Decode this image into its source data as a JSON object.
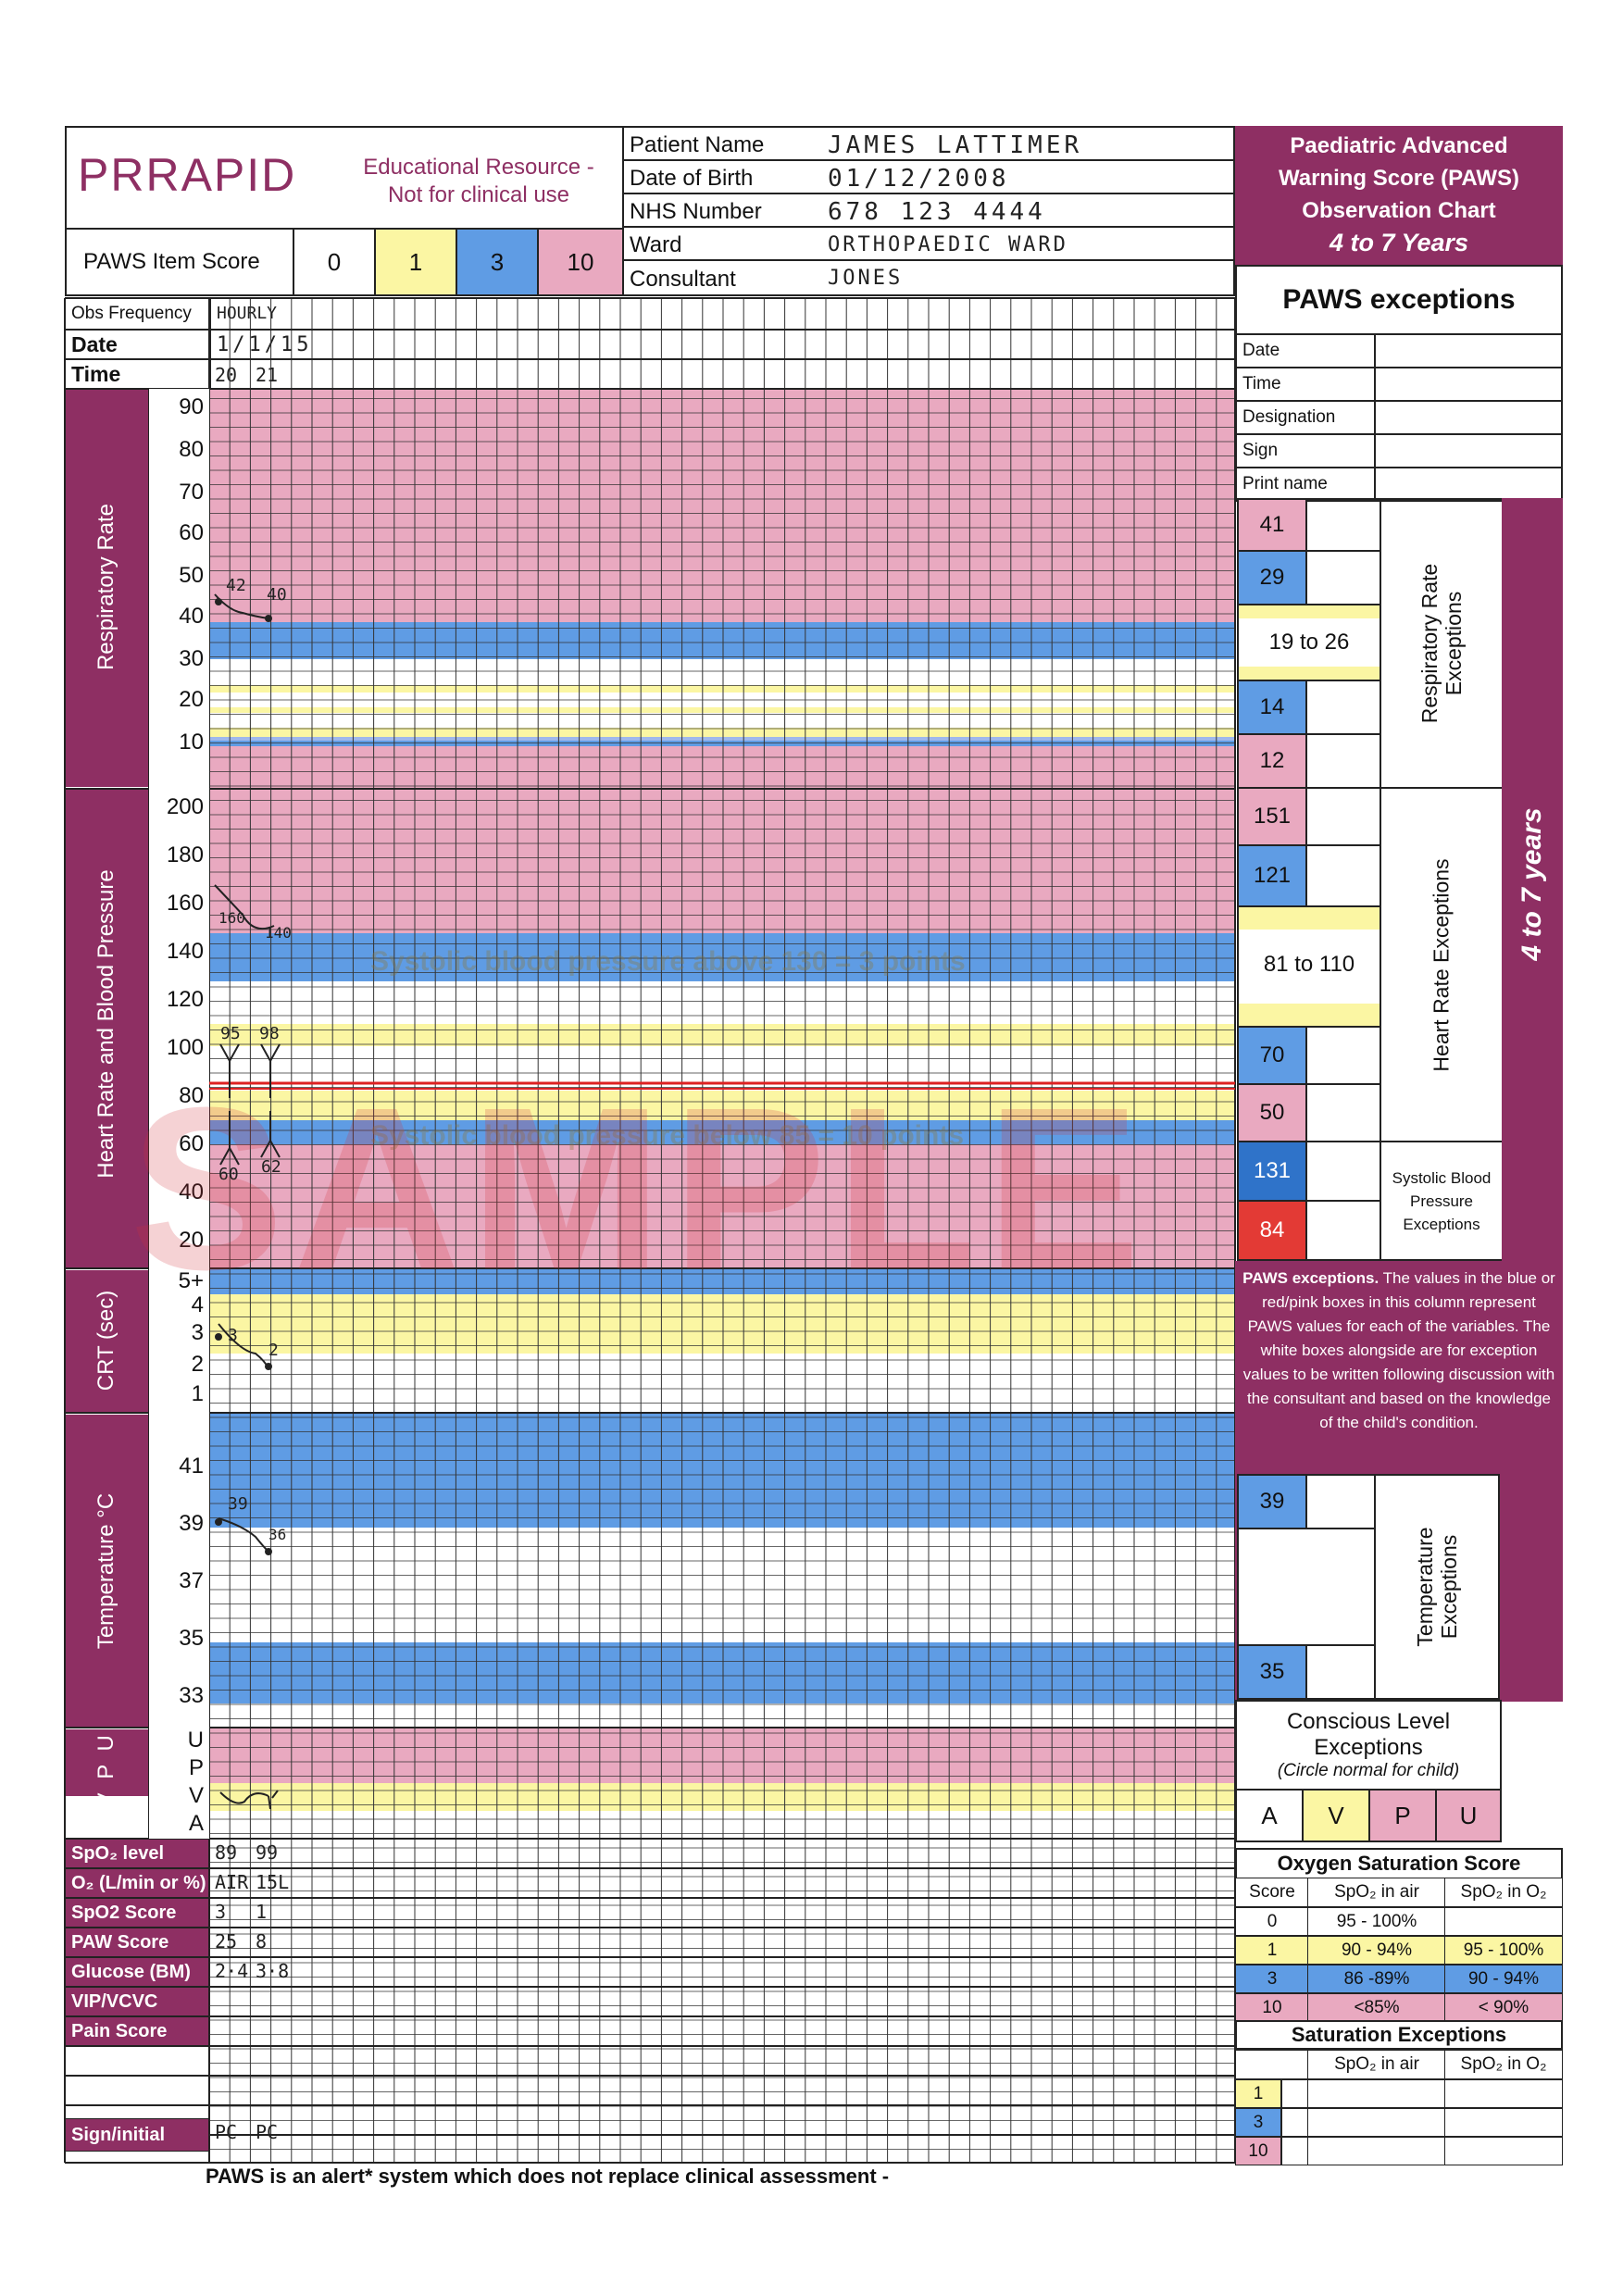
{
  "header": {
    "logo": "PRRAPID",
    "disclaimer_line1": "Educational Resource -",
    "disclaimer_line2": "Not for clinical use",
    "score_label": "PAWS Item Score",
    "score_values": [
      "0",
      "1",
      "3",
      "10"
    ],
    "patient_fields": [
      {
        "label": "Patient Name",
        "value": "JAMES LATTIMER"
      },
      {
        "label": "Date of Birth",
        "value": "01/12/2008"
      },
      {
        "label": "NHS Number",
        "value": "678 123 4444"
      },
      {
        "label": "Ward",
        "value": "ORTHOPAEDIC WARD"
      },
      {
        "label": "Consultant",
        "value": "JONES"
      }
    ],
    "chart_title_line1": "Paediatric Advanced",
    "chart_title_line2": "Warning Score (PAWS)",
    "chart_title_line3": "Observation Chart",
    "age_band": "4 to 7 Years"
  },
  "top_rows": {
    "obs_frequency_label": "Obs Frequency",
    "obs_frequency_value": "HOURLY",
    "date_label": "Date",
    "date_value": "1/1/15",
    "time_label": "Time",
    "time_values": [
      "20",
      "21"
    ]
  },
  "sections": {
    "respiratory": {
      "title": "Respiratory Rate",
      "ticks": [
        "90",
        "80",
        "70",
        "60",
        "50",
        "40",
        "30",
        "20",
        "10"
      ],
      "readings": [
        "42",
        "40"
      ]
    },
    "heart": {
      "title": "Heart Rate and Blood Pressure",
      "ticks": [
        "200",
        "180",
        "160",
        "140",
        "120",
        "100",
        "80",
        "60",
        "40",
        "20"
      ],
      "hr_readings": [
        "160",
        "140"
      ],
      "bp_systolic": [
        "95",
        "98"
      ],
      "bp_diastolic": [
        "60",
        "62"
      ],
      "overlay_above": "Systolic blood pressure above 130 = 3 points",
      "overlay_below": "Systolic blood pressure below 85 = 10 points"
    },
    "crt": {
      "title": "CRT (sec)",
      "ticks": [
        "5+",
        "4",
        "3",
        "2",
        "1"
      ],
      "readings": [
        "3",
        "2"
      ]
    },
    "temperature": {
      "title": "Temperature °C",
      "ticks": [
        "41",
        "39",
        "37",
        "35",
        "33"
      ],
      "readings": [
        "39",
        "36"
      ]
    },
    "avpu": {
      "title": "A V P U",
      "ticks": [
        "U",
        "P",
        "V",
        "A"
      ]
    }
  },
  "bottom_rows": [
    {
      "label": "SpO₂ level",
      "values": [
        "89",
        "99"
      ]
    },
    {
      "label": "O₂ (L/min or %)",
      "values": [
        "AIR",
        "15L"
      ]
    },
    {
      "label": "SpO2 Score",
      "values": [
        "3",
        "1"
      ]
    },
    {
      "label": "PAW Score",
      "values": [
        "25",
        "8"
      ]
    },
    {
      "label": "Glucose (BM)",
      "values": [
        "2·4",
        "3·8"
      ]
    },
    {
      "label": "VIP/VCVC",
      "values": [
        "",
        ""
      ]
    },
    {
      "label": "Pain Score",
      "values": [
        "",
        ""
      ]
    },
    {
      "label": "",
      "values": [
        "",
        ""
      ]
    },
    {
      "label": "",
      "values": [
        "",
        ""
      ]
    },
    {
      "label": "Sign/initial",
      "values": [
        "PC",
        "PC"
      ]
    }
  ],
  "exceptions": {
    "title": "PAWS exceptions",
    "meta_rows": [
      "Date",
      "Time",
      "Designation",
      "Sign",
      "Print name"
    ],
    "resp_values": [
      "41",
      "29",
      "19 to 26",
      "14",
      "12"
    ],
    "resp_label": "Respiratory Rate Exceptions",
    "hr_values": [
      "151",
      "121",
      "81 to 110",
      "70",
      "50"
    ],
    "hr_label": "Heart Rate Exceptions",
    "bp_values": [
      "131",
      "84"
    ],
    "bp_label_line1": "Systolic Blood",
    "bp_label_line2": "Pressure",
    "bp_label_line3": "Exceptions",
    "age_vertical": "4 to 7 years",
    "note_bold": "PAWS exceptions.",
    "note_text": "The values in the blue or red/pink boxes in this column represent PAWS values for each of the variables. The white boxes alongside are for exception values to be written following discussion with the consultant and based on the knowledge of the child's condition.",
    "temp_values": [
      "39",
      "35"
    ],
    "temp_label": "Temperature Exceptions",
    "conscious_line1": "Conscious Level",
    "conscious_line2": "Exceptions",
    "conscious_note": "(Circle normal for child)",
    "avpu_letters": [
      "A",
      "V",
      "P",
      "U"
    ]
  },
  "oxygen": {
    "title": "Oxygen Saturation Score",
    "headers": [
      "Score",
      "SpO₂ in air",
      "SpO₂ in O₂"
    ],
    "rows": [
      [
        "0",
        "95 - 100%",
        ""
      ],
      [
        "1",
        "90 - 94%",
        "95 - 100%"
      ],
      [
        "3",
        "86 -89%",
        "90 - 94%"
      ],
      [
        "10",
        "<85%",
        "< 90%"
      ]
    ],
    "exceptions_title": "Saturation Exceptions",
    "exc_headers": [
      "",
      "SpO₂ in air",
      "SpO₂ in O₂"
    ],
    "exc_scores": [
      "1",
      "3",
      "10"
    ]
  },
  "watermark": "SAMPLE",
  "footer": "PAWS is an alert* system which does not replace clinical assessment -"
}
